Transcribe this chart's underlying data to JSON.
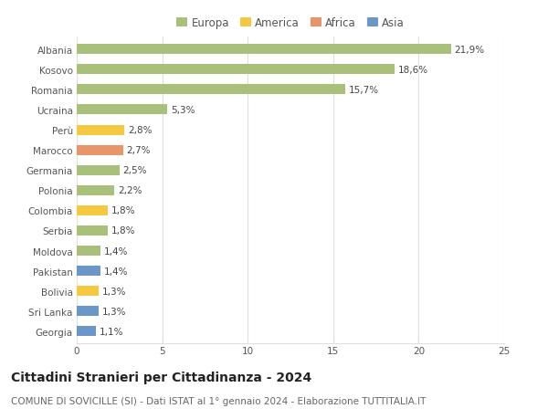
{
  "categories": [
    "Albania",
    "Kosovo",
    "Romania",
    "Ucraina",
    "Perù",
    "Marocco",
    "Germania",
    "Polonia",
    "Colombia",
    "Serbia",
    "Moldova",
    "Pakistan",
    "Bolivia",
    "Sri Lanka",
    "Georgia"
  ],
  "values": [
    21.9,
    18.6,
    15.7,
    5.3,
    2.8,
    2.7,
    2.5,
    2.2,
    1.8,
    1.8,
    1.4,
    1.4,
    1.3,
    1.3,
    1.1
  ],
  "labels": [
    "21,9%",
    "18,6%",
    "15,7%",
    "5,3%",
    "2,8%",
    "2,7%",
    "2,5%",
    "2,2%",
    "1,8%",
    "1,8%",
    "1,4%",
    "1,4%",
    "1,3%",
    "1,3%",
    "1,1%"
  ],
  "colors": [
    "#a8c07a",
    "#a8c07a",
    "#a8c07a",
    "#a8c07a",
    "#f5c842",
    "#e8956a",
    "#a8c07a",
    "#a8c07a",
    "#f5c842",
    "#a8c07a",
    "#a8c07a",
    "#6b96c8",
    "#f5c842",
    "#6b96c8",
    "#6b96c8"
  ],
  "legend_colors": {
    "Europa": "#a8c07a",
    "America": "#f5c842",
    "Africa": "#e8956a",
    "Asia": "#6b96c8"
  },
  "title": "Cittadini Stranieri per Cittadinanza - 2024",
  "subtitle": "COMUNE DI SOVICILLE (SI) - Dati ISTAT al 1° gennaio 2024 - Elaborazione TUTTITALIA.IT",
  "xlim": [
    0,
    25
  ],
  "xticks": [
    0,
    5,
    10,
    15,
    20,
    25
  ],
  "background_color": "#ffffff",
  "grid_color": "#e0e0e0",
  "bar_height": 0.5,
  "title_fontsize": 10,
  "subtitle_fontsize": 7.5,
  "label_fontsize": 7.5,
  "tick_fontsize": 7.5,
  "legend_fontsize": 8.5
}
